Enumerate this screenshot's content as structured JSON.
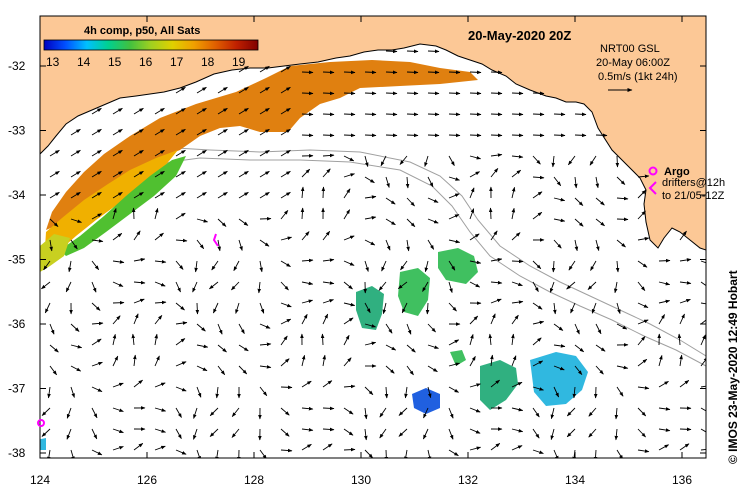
{
  "map": {
    "date_title": "20-May-2020 20Z",
    "colorbar": {
      "title": "4h comp, p50, All Sats",
      "ticks": [
        "13",
        "14",
        "15",
        "16",
        "17",
        "18",
        "19"
      ],
      "stops": [
        "#0000c0",
        "#0050ff",
        "#00c0ff",
        "#00d090",
        "#40c040",
        "#a0d020",
        "#e0d000",
        "#f0a000",
        "#e06000",
        "#c02000",
        "#800000"
      ]
    },
    "current_info": {
      "product": "NRT00 GSL",
      "time": "20-May 06:00Z",
      "scale": "0.5m/s (1kt 24h)"
    },
    "legend": {
      "argo_label": "Argo",
      "drifters_line1": "drifters@12h",
      "drifters_line2": "to 21/05-12Z"
    },
    "credit": "© IMOS 23-May-2020 12:49 Hobart",
    "lat_ticks": [
      "-32",
      "-33",
      "-34",
      "-35",
      "-36",
      "-37",
      "-38"
    ],
    "lon_ticks": [
      "124",
      "126",
      "128",
      "130",
      "132",
      "134",
      "136"
    ],
    "colors": {
      "land": "#fcc896",
      "ocean": "#ffffff",
      "argo": "#ff00ff"
    }
  }
}
